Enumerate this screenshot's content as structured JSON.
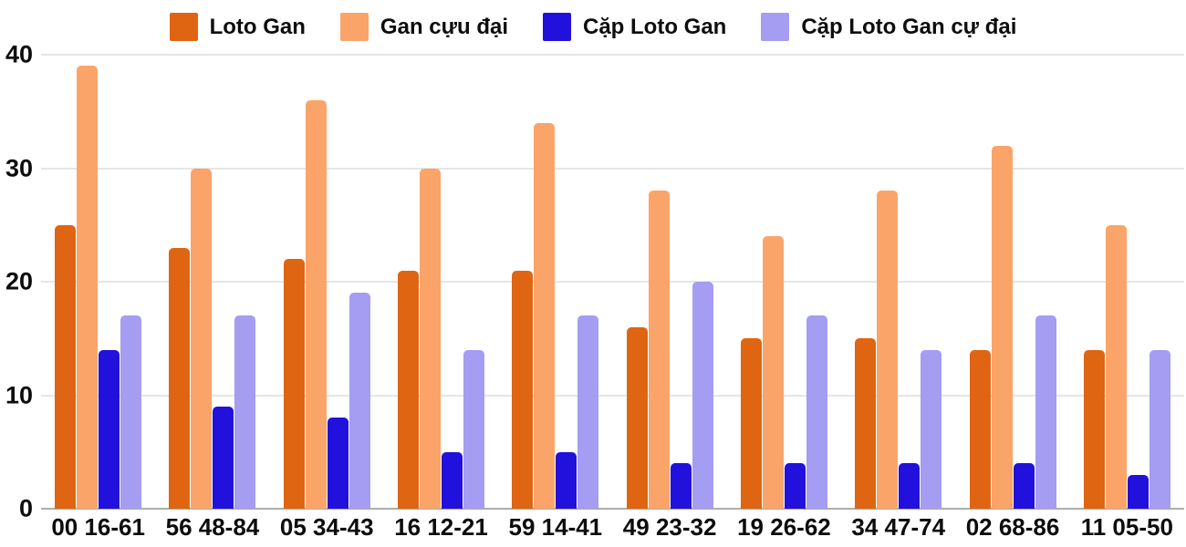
{
  "colors": {
    "background": "#ffffff",
    "gridline": "#e6e6e6",
    "axis_line": "#adadad",
    "text": "#0d0d0d"
  },
  "chart_data": {
    "type": "bar",
    "title": "",
    "xlabel": "",
    "ylabel": "",
    "categories": [
      "00 16-61",
      "56 48-84",
      "05 34-43",
      "16 12-21",
      "59 14-41",
      "49 23-32",
      "19 26-62",
      "34 47-74",
      "02 68-86",
      "11 05-50"
    ],
    "series": [
      {
        "name": "Loto Gan",
        "color": "#df6512",
        "values": [
          25,
          23,
          22,
          21,
          21,
          16,
          15,
          15,
          14,
          14
        ]
      },
      {
        "name": "Gan cựu đại",
        "color": "#fba46a",
        "values": [
          39,
          30,
          36,
          30,
          34,
          28,
          24,
          28,
          32,
          25
        ]
      },
      {
        "name": "Cặp Loto Gan",
        "color": "#2211dc",
        "values": [
          14,
          9,
          8,
          5,
          5,
          4,
          4,
          4,
          4,
          3
        ]
      },
      {
        "name": "Cặp Loto Gan cự đại",
        "color": "#a49df2",
        "values": [
          17,
          17,
          19,
          14,
          17,
          20,
          17,
          14,
          17,
          14
        ]
      }
    ],
    "ylim": [
      0,
      40
    ],
    "yticks": [
      0,
      10,
      20,
      30,
      40
    ],
    "grid": true,
    "legend_position": "top"
  }
}
